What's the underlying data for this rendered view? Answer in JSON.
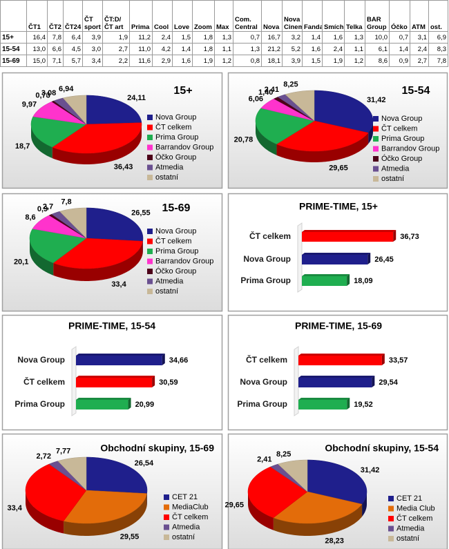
{
  "table": {
    "columns": [
      "ČT1",
      "ČT2",
      "ČT24",
      "ČT sport",
      "ČT:D/ČT art",
      "Prima",
      "Cool",
      "Love",
      "Zoom",
      "Max",
      "Com. Central",
      "Nova",
      "Nova Cinema",
      "Fanda",
      "Smíchov",
      "Telka",
      "BAR Group",
      "Óčko",
      "ATM",
      "ost."
    ],
    "rows": [
      {
        "label": "15+",
        "values": [
          "16,4",
          "7,8",
          "6,4",
          "3,9",
          "1,9",
          "11,2",
          "2,4",
          "1,5",
          "1,8",
          "1,3",
          "0,7",
          "16,7",
          "3,2",
          "1,4",
          "1,6",
          "1,3",
          "10,0",
          "0,7",
          "3,1",
          "6,9"
        ]
      },
      {
        "label": "15-54",
        "values": [
          "13,0",
          "6,6",
          "4,5",
          "3,0",
          "2,7",
          "11,0",
          "4,2",
          "1,4",
          "1,8",
          "1,1",
          "1,3",
          "21,2",
          "5,2",
          "1,6",
          "2,4",
          "1,1",
          "6,1",
          "1,4",
          "2,4",
          "8,3"
        ]
      },
      {
        "label": "15-69",
        "values": [
          "15,0",
          "7,1",
          "5,7",
          "3,4",
          "2,2",
          "11,6",
          "2,9",
          "1,6",
          "1,9",
          "1,2",
          "0,8",
          "18,1",
          "3,9",
          "1,5",
          "1,9",
          "1,2",
          "8,6",
          "0,9",
          "2,7",
          "7,8"
        ]
      }
    ]
  },
  "chart_data": [
    {
      "type": "pie",
      "title": "15+",
      "categories": [
        "Nova Group",
        "ČT celkem",
        "Prima Group",
        "Barrandov Group",
        "Óčko Group",
        "Atmedia",
        "ostatní"
      ],
      "values": [
        24.11,
        36.43,
        18.7,
        9.97,
        0.73,
        3.08,
        6.94
      ],
      "value_labels": [
        "24,11",
        "36,43",
        "18,7",
        "9,97",
        "0,73",
        "3,08",
        "6,94"
      ],
      "colors": [
        "#1f1f8c",
        "#ff0000",
        "#1fae50",
        "#ff33cc",
        "#4d0019",
        "#6a5090",
        "#c8b898"
      ]
    },
    {
      "type": "pie",
      "title": "15-54",
      "categories": [
        "Nova Group",
        "ČT celkem",
        "Prima Group",
        "Barrandov Group",
        "Óčko Group",
        "Atmedia",
        "ostatní"
      ],
      "values": [
        31.42,
        29.65,
        20.78,
        6.06,
        1.4,
        2.41,
        8.25
      ],
      "value_labels": [
        "31,42",
        "29,65",
        "20,78",
        "6,06",
        "1,40",
        "2,41",
        "8,25"
      ],
      "colors": [
        "#1f1f8c",
        "#ff0000",
        "#1fae50",
        "#ff33cc",
        "#4d0019",
        "#6a5090",
        "#c8b898"
      ]
    },
    {
      "type": "pie",
      "title": "15-69",
      "categories": [
        "Nova Group",
        "ČT celkem",
        "Prima Group",
        "Barrandov Group",
        "Óčko Group",
        "Atmedia",
        "ostatní"
      ],
      "values": [
        26.55,
        33.4,
        20.1,
        8.6,
        0.9,
        2.7,
        7.8
      ],
      "value_labels": [
        "26,55",
        "33,4",
        "20,1",
        "8,6",
        "0,9",
        "2,7",
        "7,8"
      ],
      "colors": [
        "#1f1f8c",
        "#ff0000",
        "#1fae50",
        "#ff33cc",
        "#4d0019",
        "#6a5090",
        "#c8b898"
      ]
    },
    {
      "type": "bar",
      "title": "PRIME-TIME, 15+",
      "categories": [
        "ČT celkem",
        "Nova Group",
        "Prima Group"
      ],
      "values": [
        36.73,
        26.45,
        18.09
      ],
      "value_labels": [
        "36,73",
        "26,45",
        "18,09"
      ],
      "colors": [
        "#ff0000",
        "#1f1f8c",
        "#1fae50"
      ]
    },
    {
      "type": "bar",
      "title": "PRIME-TIME, 15-54",
      "categories": [
        "Nova Group",
        "ČT celkem",
        "Prima Group"
      ],
      "values": [
        34.66,
        30.59,
        20.99
      ],
      "value_labels": [
        "34,66",
        "30,59",
        "20,99"
      ],
      "colors": [
        "#1f1f8c",
        "#ff0000",
        "#1fae50"
      ]
    },
    {
      "type": "bar",
      "title": "PRIME-TIME, 15-69",
      "categories": [
        "ČT celkem",
        "Nova Group",
        "Prima Group"
      ],
      "values": [
        33.57,
        29.54,
        19.52
      ],
      "value_labels": [
        "33,57",
        "29,54",
        "19,52"
      ],
      "colors": [
        "#ff0000",
        "#1f1f8c",
        "#1fae50"
      ]
    },
    {
      "type": "pie",
      "title": "Obchodní skupiny, 15-69",
      "categories": [
        "CET 21",
        "MediaClub",
        "ČT celkem",
        "Atmedia",
        "ostatní"
      ],
      "values": [
        26.54,
        29.55,
        33.4,
        2.72,
        7.77
      ],
      "value_labels": [
        "26,54",
        "29,55",
        "33,4",
        "2,72",
        "7,77"
      ],
      "colors": [
        "#1f1f8c",
        "#e36c0a",
        "#ff0000",
        "#6a5090",
        "#c8b898"
      ]
    },
    {
      "type": "pie",
      "title": "Obchodní skupiny, 15-54",
      "categories": [
        "CET 21",
        "Media Club",
        "ČT celkem",
        "Atmedia",
        "ostatní"
      ],
      "values": [
        31.42,
        28.23,
        29.65,
        2.41,
        8.25
      ],
      "value_labels": [
        "31,42",
        "28,23",
        "29,65",
        "2,41",
        "8,25"
      ],
      "colors": [
        "#1f1f8c",
        "#e36c0a",
        "#ff0000",
        "#6a5090",
        "#c8b898"
      ]
    }
  ]
}
